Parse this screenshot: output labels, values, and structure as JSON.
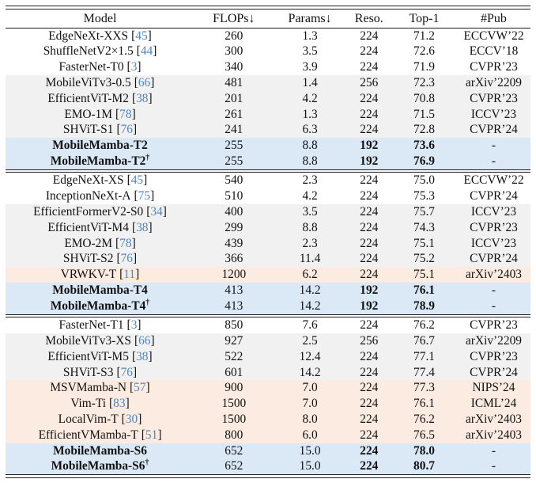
{
  "colors": {
    "cite": "#4e86c6",
    "row_gray": "#f1f1f2",
    "row_orange": "#fcebe0",
    "row_blue": "#dbe8f6",
    "rule": "#1c1c1c"
  },
  "symbols": {
    "bracket_open": "[",
    "bracket_close": "]",
    "dagger": "†"
  },
  "header": {
    "columns": [
      "Model",
      "FLOPs↓",
      "Params↓",
      "Reso.",
      "Top-1",
      "#Pub"
    ]
  },
  "groups": [
    {
      "rows": [
        {
          "model": "EdgeNeXt-XXS",
          "cite": "45",
          "dagger": false,
          "flops": "260",
          "params": "1.3",
          "reso": "224",
          "top1": "71.2",
          "pub": "ECCVW’22",
          "bg": "white",
          "emph": false
        },
        {
          "model": "ShuffleNetV2×1.5",
          "cite": "44",
          "dagger": false,
          "flops": "300",
          "params": "3.5",
          "reso": "224",
          "top1": "72.6",
          "pub": "ECCV’18",
          "bg": "white",
          "emph": false
        },
        {
          "model": "FasterNet-T0",
          "cite": "3",
          "dagger": false,
          "flops": "340",
          "params": "3.9",
          "reso": "224",
          "top1": "71.9",
          "pub": "CVPR’23",
          "bg": "white",
          "emph": false
        },
        {
          "model": "MobileViTv3-0.5",
          "cite": "66",
          "dagger": false,
          "flops": "481",
          "params": "1.4",
          "reso": "256",
          "top1": "72.3",
          "pub": "arXiv’2209",
          "bg": "gray",
          "emph": false
        },
        {
          "model": "EfficientViT-M2",
          "cite": "38",
          "dagger": false,
          "flops": "201",
          "params": "4.2",
          "reso": "224",
          "top1": "70.8",
          "pub": "CVPR’23",
          "bg": "gray",
          "emph": false
        },
        {
          "model": "EMO-1M",
          "cite": "78",
          "dagger": false,
          "flops": "261",
          "params": "1.3",
          "reso": "224",
          "top1": "71.5",
          "pub": "ICCV’23",
          "bg": "gray",
          "emph": false
        },
        {
          "model": "SHViT-S1",
          "cite": "76",
          "dagger": false,
          "flops": "241",
          "params": "6.3",
          "reso": "224",
          "top1": "72.8",
          "pub": "CVPR’24",
          "bg": "gray",
          "emph": false
        },
        {
          "model": "MobileMamba-T2",
          "cite": null,
          "dagger": false,
          "flops": "255",
          "params": "8.8",
          "reso": "192",
          "top1": "73.6",
          "pub": "-",
          "bg": "blue",
          "emph": true
        },
        {
          "model": "MobileMamba-T2",
          "cite": null,
          "dagger": true,
          "flops": "255",
          "params": "8.8",
          "reso": "192",
          "top1": "76.9",
          "pub": "-",
          "bg": "blue",
          "emph": true
        }
      ]
    },
    {
      "rows": [
        {
          "model": "EdgeNeXt-XS",
          "cite": "45",
          "dagger": false,
          "flops": "540",
          "params": "2.3",
          "reso": "224",
          "top1": "75.0",
          "pub": "ECCVW’22",
          "bg": "white",
          "emph": false
        },
        {
          "model": "InceptionNeXt-A",
          "cite": "75",
          "dagger": false,
          "flops": "510",
          "params": "4.2",
          "reso": "224",
          "top1": "75.3",
          "pub": "CVPR’24",
          "bg": "white",
          "emph": false
        },
        {
          "model": "EfficientFormerV2-S0",
          "cite": "34",
          "dagger": false,
          "flops": "400",
          "params": "3.5",
          "reso": "224",
          "top1": "75.7",
          "pub": "ICCV’23",
          "bg": "gray",
          "emph": false
        },
        {
          "model": "EfficientViT-M4",
          "cite": "38",
          "dagger": false,
          "flops": "299",
          "params": "8.8",
          "reso": "224",
          "top1": "74.3",
          "pub": "CVPR’23",
          "bg": "gray",
          "emph": false
        },
        {
          "model": "EMO-2M",
          "cite": "78",
          "dagger": false,
          "flops": "439",
          "params": "2.3",
          "reso": "224",
          "top1": "75.1",
          "pub": "ICCV’23",
          "bg": "gray",
          "emph": false
        },
        {
          "model": "SHViT-S2",
          "cite": "76",
          "dagger": false,
          "flops": "366",
          "params": "11.4",
          "reso": "224",
          "top1": "75.2",
          "pub": "CVPR’24",
          "bg": "gray",
          "emph": false
        },
        {
          "model": "VRWKV-T",
          "cite": "11",
          "dagger": false,
          "flops": "1200",
          "params": "6.2",
          "reso": "224",
          "top1": "75.1",
          "pub": "arXiv’2403",
          "bg": "orange",
          "emph": false
        },
        {
          "model": "MobileMamba-T4",
          "cite": null,
          "dagger": false,
          "flops": "413",
          "params": "14.2",
          "reso": "192",
          "top1": "76.1",
          "pub": "-",
          "bg": "blue",
          "emph": true
        },
        {
          "model": "MobileMamba-T4",
          "cite": null,
          "dagger": true,
          "flops": "413",
          "params": "14.2",
          "reso": "192",
          "top1": "78.9",
          "pub": "-",
          "bg": "blue",
          "emph": true
        }
      ]
    },
    {
      "rows": [
        {
          "model": "FasterNet-T1",
          "cite": "3",
          "dagger": false,
          "flops": "850",
          "params": "7.6",
          "reso": "224",
          "top1": "76.2",
          "pub": "CVPR’23",
          "bg": "white",
          "emph": false
        },
        {
          "model": "MobileViTv3-XS",
          "cite": "66",
          "dagger": false,
          "flops": "927",
          "params": "2.5",
          "reso": "256",
          "top1": "76.7",
          "pub": "arXiv’2209",
          "bg": "gray",
          "emph": false
        },
        {
          "model": "EfficientViT-M5",
          "cite": "38",
          "dagger": false,
          "flops": "522",
          "params": "12.4",
          "reso": "224",
          "top1": "77.1",
          "pub": "CVPR’23",
          "bg": "gray",
          "emph": false
        },
        {
          "model": "SHViT-S3",
          "cite": "76",
          "dagger": false,
          "flops": "601",
          "params": "14.2",
          "reso": "224",
          "top1": "77.4",
          "pub": "CVPR’24",
          "bg": "gray",
          "emph": false
        },
        {
          "model": "MSVMamba-N",
          "cite": "57",
          "dagger": false,
          "flops": "900",
          "params": "7.0",
          "reso": "224",
          "top1": "77.3",
          "pub": "NIPS’24",
          "bg": "orange",
          "emph": false
        },
        {
          "model": "Vim-Ti",
          "cite": "83",
          "dagger": false,
          "flops": "1500",
          "params": "7.0",
          "reso": "224",
          "top1": "76.1",
          "pub": "ICML’24",
          "bg": "orange",
          "emph": false
        },
        {
          "model": "LocalVim-T",
          "cite": "30",
          "dagger": false,
          "flops": "1500",
          "params": "8.0",
          "reso": "224",
          "top1": "76.2",
          "pub": "arXiv’2403",
          "bg": "orange",
          "emph": false
        },
        {
          "model": "EfficientVMamba-T",
          "cite": "51",
          "dagger": false,
          "flops": "800",
          "params": "6.0",
          "reso": "224",
          "top1": "76.5",
          "pub": "arXiv’2403",
          "bg": "orange",
          "emph": false
        },
        {
          "model": "MobileMamba-S6",
          "cite": null,
          "dagger": false,
          "flops": "652",
          "params": "15.0",
          "reso": "224",
          "top1": "78.0",
          "pub": "-",
          "bg": "blue",
          "emph": true
        },
        {
          "model": "MobileMamba-S6",
          "cite": null,
          "dagger": true,
          "flops": "652",
          "params": "15.0",
          "reso": "224",
          "top1": "80.7",
          "pub": "-",
          "bg": "blue",
          "emph": true
        }
      ]
    }
  ]
}
